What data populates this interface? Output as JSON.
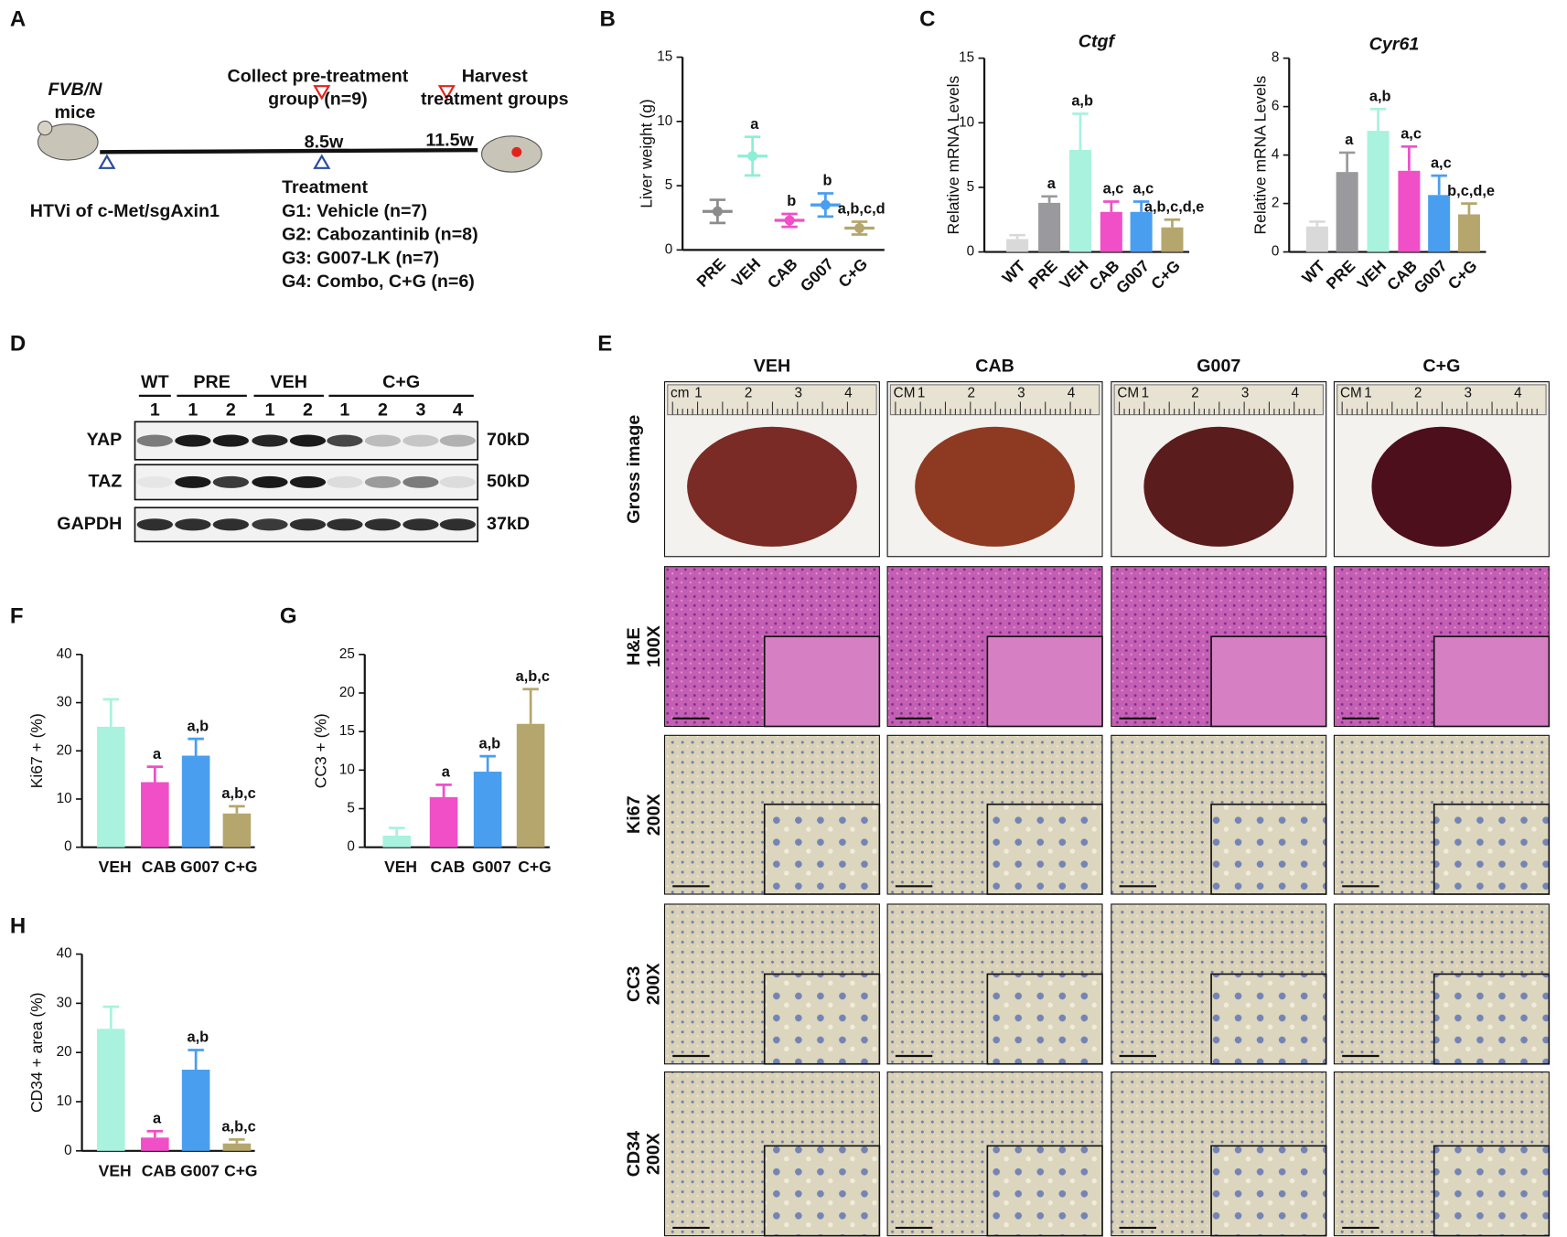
{
  "panel_labels": [
    "A",
    "B",
    "C",
    "D",
    "E",
    "F",
    "G",
    "H"
  ],
  "timeline": {
    "strain": "FVB/N",
    "strain_suffix": "mice",
    "collect": [
      "Collect pre-treatment",
      "group (n=9)"
    ],
    "harvest": [
      "Harvest",
      "treatment groups"
    ],
    "time_points": [
      "8.5w",
      "11.5w"
    ],
    "treatment_title": "Treatment",
    "model": "HTVi of c-Met/sgAxin1",
    "groups": [
      {
        "text": "G1: Vehicle (n=7)",
        "color": "#6ee6cc"
      },
      {
        "text": "G2: Cabozantinib (n=8)",
        "color": "#f04fc8"
      },
      {
        "text": "G3: G007-LK (n=7)",
        "color": "#3d95ee"
      },
      {
        "text": "G4: Combo, C+G (n=6)",
        "color": "#c2a74a"
      }
    ]
  },
  "western": {
    "groups": [
      "WT",
      "PRE",
      "VEH",
      "C+G"
    ],
    "lanes": [
      "1",
      "1",
      "2",
      "1",
      "2",
      "1",
      "2",
      "3",
      "4"
    ],
    "rows": [
      {
        "protein": "YAP",
        "size": "70kD"
      },
      {
        "protein": "TAZ",
        "size": "50kD"
      },
      {
        "protein": "GAPDH",
        "size": "37kD"
      }
    ]
  },
  "histology": {
    "columns": [
      "VEH",
      "CAB",
      "G007",
      "C+G"
    ],
    "rows": [
      [
        "Gross image"
      ],
      [
        "H&E",
        "100X"
      ],
      [
        "Ki67",
        "200X"
      ],
      [
        "CC3",
        "200X"
      ],
      [
        "CD34",
        "200X"
      ]
    ],
    "ruler_units": [
      "cm",
      "CM",
      "CM",
      "CM"
    ],
    "ruler_numbers": [
      "1",
      "2",
      "3",
      "4"
    ]
  },
  "chart_data": [
    {
      "type": "dot",
      "ylabel": "Liver weight (g)",
      "categories": [
        "PRE",
        "VEH",
        "CAB",
        "G007",
        "C+G"
      ],
      "values": [
        3,
        7.3,
        2.3,
        3.5,
        1.7
      ],
      "errors": [
        0.9,
        1.5,
        0.5,
        0.9,
        0.5
      ],
      "colors": [
        "#8c8c8c",
        "#8eeed6",
        "#f04fc8",
        "#4a9ef0",
        "#b5a66d"
      ],
      "annotations": [
        null,
        "a",
        "b",
        "b",
        "a,b,c,d"
      ],
      "ylim": [
        0,
        15
      ],
      "yticks": [
        0,
        5,
        10,
        15
      ]
    },
    {
      "type": "bar",
      "title": "Ctgf",
      "ylabel": "Relative mRNA Levels",
      "categories": [
        "WT",
        "PRE",
        "VEH",
        "CAB",
        "G007",
        "C+G"
      ],
      "values": [
        1,
        3.8,
        7.9,
        3.1,
        3.1,
        1.9
      ],
      "errors": [
        0.3,
        0.5,
        2.8,
        0.8,
        0.8,
        0.6
      ],
      "colors": [
        "#d9d9d9",
        "#9a9a9e",
        "#a8f2de",
        "#f04fc8",
        "#4a9ef0",
        "#b5a66d"
      ],
      "annotations": [
        null,
        "a",
        "a,b",
        "a,c",
        "a,c",
        "a,b,c,d,e"
      ],
      "ylim": [
        0,
        15
      ],
      "yticks": [
        0,
        5,
        10,
        15
      ]
    },
    {
      "type": "bar",
      "title": "Cyr61",
      "ylabel": "Relative mRNA Levels",
      "categories": [
        "WT",
        "PRE",
        "VEH",
        "CAB",
        "G007",
        "C+G"
      ],
      "values": [
        1.05,
        3.3,
        5,
        3.35,
        2.35,
        1.55
      ],
      "errors": [
        0.2,
        0.8,
        0.9,
        1,
        0.8,
        0.45
      ],
      "colors": [
        "#d9d9d9",
        "#9a9a9e",
        "#a8f2de",
        "#f04fc8",
        "#4a9ef0",
        "#b5a66d"
      ],
      "annotations": [
        null,
        "a",
        "a,b",
        "a,c",
        "a,c",
        "b,c,d,e"
      ],
      "ylim": [
        0,
        8
      ],
      "yticks": [
        0,
        2,
        4,
        6,
        8
      ]
    },
    {
      "type": "bar",
      "ylabel": "Ki67 + (%)",
      "categories": [
        "VEH",
        "CAB",
        "G007",
        "C+G"
      ],
      "values": [
        25,
        13.5,
        19,
        7
      ],
      "errors": [
        5.7,
        3.2,
        3.5,
        1.5
      ],
      "colors": [
        "#a8f2de",
        "#f04fc8",
        "#4a9ef0",
        "#b5a66d"
      ],
      "annotations": [
        null,
        "a",
        "a,b",
        "a,b,c"
      ],
      "ylim": [
        0,
        40
      ],
      "yticks": [
        0,
        10,
        20,
        30,
        40
      ]
    },
    {
      "type": "bar",
      "ylabel": "CC3 + (%)",
      "categories": [
        "VEH",
        "CAB",
        "G007",
        "C+G"
      ],
      "values": [
        1.5,
        6.5,
        9.8,
        16
      ],
      "errors": [
        1,
        1.6,
        2,
        4.5
      ],
      "colors": [
        "#a8f2de",
        "#f04fc8",
        "#4a9ef0",
        "#b5a66d"
      ],
      "annotations": [
        null,
        "a",
        "a,b",
        "a,b,c"
      ],
      "ylim": [
        0,
        25
      ],
      "yticks": [
        0,
        5,
        10,
        15,
        20,
        25
      ]
    },
    {
      "type": "bar",
      "ylabel": "CD34 + area (%)",
      "categories": [
        "VEH",
        "CAB",
        "G007",
        "C+G"
      ],
      "values": [
        24.8,
        2.7,
        16.5,
        1.5
      ],
      "errors": [
        4.5,
        1.3,
        4,
        0.8
      ],
      "colors": [
        "#a8f2de",
        "#f04fc8",
        "#4a9ef0",
        "#b5a66d"
      ],
      "annotations": [
        null,
        "a",
        "a,b",
        "a,b,c"
      ],
      "ylim": [
        0,
        40
      ],
      "yticks": [
        0,
        10,
        20,
        30,
        40
      ]
    }
  ]
}
